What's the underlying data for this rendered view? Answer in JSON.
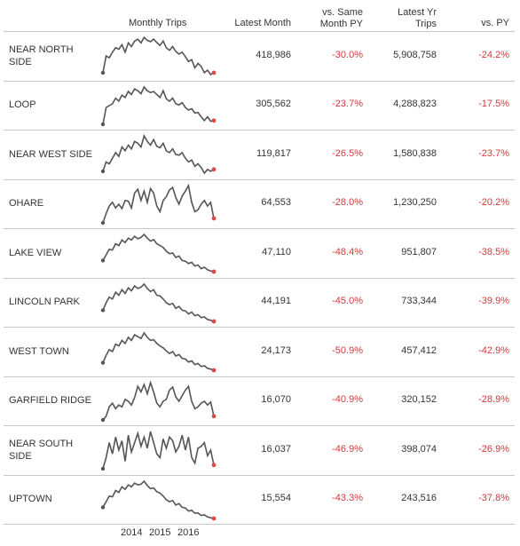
{
  "headers": {
    "monthly_trips": "Monthly Trips",
    "latest_month": "Latest Month",
    "vs_same_month_1": "vs. Same",
    "vs_same_month_2": "Month PY",
    "latest_yr_1": "Latest Yr",
    "latest_yr_2": "Trips",
    "vs_py": "vs. PY"
  },
  "x_axis_labels": [
    "2014",
    "2015",
    "2016"
  ],
  "rows": [
    {
      "name_1": "NEAR NORTH",
      "name_2": "SIDE",
      "latest_month": "418,986",
      "vs_same_month_py": "-30.0%",
      "latest_yr_trips": "5,908,758",
      "vs_py": "-24.2%"
    },
    {
      "name_1": "LOOP",
      "name_2": "",
      "latest_month": "305,562",
      "vs_same_month_py": "-23.7%",
      "latest_yr_trips": "4,288,823",
      "vs_py": "-17.5%"
    },
    {
      "name_1": "NEAR WEST SIDE",
      "name_2": "",
      "latest_month": "119,817",
      "vs_same_month_py": "-26.5%",
      "latest_yr_trips": "1,580,838",
      "vs_py": "-23.7%"
    },
    {
      "name_1": "OHARE",
      "name_2": "",
      "latest_month": "64,553",
      "vs_same_month_py": "-28.0%",
      "latest_yr_trips": "1,230,250",
      "vs_py": "-20.2%"
    },
    {
      "name_1": "LAKE VIEW",
      "name_2": "",
      "latest_month": "47,110",
      "vs_same_month_py": "-48.4%",
      "latest_yr_trips": "951,807",
      "vs_py": "-38.5%"
    },
    {
      "name_1": "LINCOLN PARK",
      "name_2": "",
      "latest_month": "44,191",
      "vs_same_month_py": "-45.0%",
      "latest_yr_trips": "733,344",
      "vs_py": "-39.9%"
    },
    {
      "name_1": "WEST TOWN",
      "name_2": "",
      "latest_month": "24,173",
      "vs_same_month_py": "-50.9%",
      "latest_yr_trips": "457,412",
      "vs_py": "-42.9%"
    },
    {
      "name_1": "GARFIELD RIDGE",
      "name_2": "",
      "latest_month": "16,070",
      "vs_same_month_py": "-40.9%",
      "latest_yr_trips": "320,152",
      "vs_py": "-28.9%"
    },
    {
      "name_1": "NEAR SOUTH",
      "name_2": "SIDE",
      "latest_month": "16,037",
      "vs_same_month_py": "-46.9%",
      "latest_yr_trips": "398,074",
      "vs_py": "-26.9%"
    },
    {
      "name_1": "UPTOWN",
      "name_2": "",
      "latest_month": "15,554",
      "vs_same_month_py": "-43.3%",
      "latest_yr_trips": "243,516",
      "vs_py": "-37.8%"
    }
  ],
  "colors": {
    "negative": "#d13b3b",
    "line": "#555555",
    "end_dot": "#e04848",
    "start_dot": "#555555",
    "grid": "#c8c8c8"
  },
  "chart_data": {
    "type": "line",
    "title": "Monthly Trips",
    "xlabel": "",
    "ylabel": "",
    "x_tick_labels": [
      "2014",
      "2015",
      "2016"
    ],
    "grid": false,
    "series": [
      {
        "name": "NEAR NORTH SIDE",
        "values": [
          0.05,
          0.5,
          0.45,
          0.6,
          0.72,
          0.68,
          0.8,
          0.6,
          0.85,
          0.75,
          0.9,
          0.95,
          0.85,
          1.0,
          0.92,
          0.88,
          0.95,
          0.86,
          0.78,
          0.9,
          0.72,
          0.65,
          0.75,
          0.62,
          0.55,
          0.6,
          0.48,
          0.35,
          0.4,
          0.18,
          0.3,
          0.22,
          0.05,
          0.12,
          0.0,
          0.05
        ]
      },
      {
        "name": "LOOP",
        "values": [
          0.0,
          0.45,
          0.5,
          0.55,
          0.7,
          0.62,
          0.78,
          0.72,
          0.88,
          0.8,
          0.95,
          0.9,
          0.82,
          1.0,
          0.9,
          0.85,
          0.88,
          0.8,
          0.72,
          0.9,
          0.68,
          0.62,
          0.7,
          0.55,
          0.52,
          0.58,
          0.45,
          0.38,
          0.42,
          0.3,
          0.32,
          0.2,
          0.1,
          0.2,
          0.08,
          0.1
        ]
      },
      {
        "name": "NEAR WEST SIDE",
        "values": [
          0.05,
          0.3,
          0.25,
          0.4,
          0.55,
          0.45,
          0.7,
          0.6,
          0.75,
          0.65,
          0.85,
          0.8,
          0.7,
          1.0,
          0.85,
          0.75,
          0.9,
          0.72,
          0.68,
          0.8,
          0.6,
          0.55,
          0.65,
          0.5,
          0.48,
          0.55,
          0.4,
          0.3,
          0.35,
          0.18,
          0.25,
          0.15,
          0.0,
          0.1,
          0.05,
          0.1
        ]
      },
      {
        "name": "OHARE",
        "values": [
          0.0,
          0.25,
          0.45,
          0.55,
          0.4,
          0.5,
          0.38,
          0.6,
          0.58,
          0.4,
          0.8,
          0.9,
          0.6,
          0.85,
          0.55,
          0.92,
          0.8,
          0.45,
          0.3,
          0.6,
          0.7,
          0.88,
          0.95,
          0.68,
          0.5,
          0.72,
          0.85,
          1.0,
          0.55,
          0.3,
          0.35,
          0.5,
          0.6,
          0.45,
          0.55,
          0.12
        ]
      },
      {
        "name": "LAKE VIEW",
        "values": [
          0.3,
          0.45,
          0.6,
          0.58,
          0.75,
          0.7,
          0.85,
          0.78,
          0.9,
          0.85,
          0.95,
          0.88,
          0.92,
          1.0,
          0.9,
          0.82,
          0.86,
          0.75,
          0.7,
          0.65,
          0.55,
          0.48,
          0.5,
          0.38,
          0.42,
          0.3,
          0.28,
          0.22,
          0.25,
          0.15,
          0.18,
          0.08,
          0.12,
          0.05,
          0.02,
          0.0
        ]
      },
      {
        "name": "LINCOLN PARK",
        "values": [
          0.3,
          0.5,
          0.65,
          0.6,
          0.78,
          0.7,
          0.85,
          0.75,
          0.9,
          0.82,
          0.95,
          0.88,
          0.92,
          1.0,
          0.88,
          0.8,
          0.85,
          0.7,
          0.68,
          0.6,
          0.5,
          0.45,
          0.48,
          0.35,
          0.4,
          0.3,
          0.28,
          0.2,
          0.25,
          0.15,
          0.18,
          0.1,
          0.12,
          0.05,
          0.03,
          0.0
        ]
      },
      {
        "name": "WEST TOWN",
        "values": [
          0.2,
          0.4,
          0.55,
          0.5,
          0.7,
          0.65,
          0.8,
          0.72,
          0.88,
          0.8,
          0.95,
          0.9,
          0.85,
          1.0,
          0.88,
          0.8,
          0.82,
          0.72,
          0.65,
          0.6,
          0.52,
          0.45,
          0.5,
          0.38,
          0.42,
          0.32,
          0.3,
          0.22,
          0.25,
          0.15,
          0.18,
          0.1,
          0.12,
          0.05,
          0.03,
          0.0
        ]
      },
      {
        "name": "GARFIELD RIDGE",
        "values": [
          0.0,
          0.1,
          0.35,
          0.45,
          0.3,
          0.4,
          0.35,
          0.55,
          0.5,
          0.4,
          0.6,
          0.9,
          0.75,
          0.95,
          0.7,
          1.0,
          0.75,
          0.45,
          0.35,
          0.5,
          0.55,
          0.8,
          0.88,
          0.62,
          0.5,
          0.65,
          0.8,
          0.9,
          0.5,
          0.3,
          0.35,
          0.45,
          0.5,
          0.4,
          0.48,
          0.1
        ]
      },
      {
        "name": "NEAR SOUTH SIDE",
        "values": [
          0.0,
          0.3,
          0.7,
          0.4,
          0.85,
          0.5,
          0.75,
          0.2,
          0.9,
          0.45,
          0.7,
          0.95,
          0.6,
          0.85,
          0.55,
          1.0,
          0.7,
          0.4,
          0.3,
          0.8,
          0.55,
          0.85,
          0.75,
          0.45,
          0.6,
          0.9,
          0.5,
          0.85,
          0.3,
          0.15,
          0.55,
          0.6,
          0.7,
          0.35,
          0.5,
          0.1
        ]
      },
      {
        "name": "UPTOWN",
        "values": [
          0.3,
          0.45,
          0.6,
          0.58,
          0.75,
          0.7,
          0.85,
          0.78,
          0.9,
          0.85,
          0.95,
          0.9,
          0.92,
          1.0,
          0.88,
          0.8,
          0.82,
          0.72,
          0.68,
          0.6,
          0.5,
          0.45,
          0.48,
          0.36,
          0.4,
          0.3,
          0.28,
          0.2,
          0.22,
          0.14,
          0.15,
          0.08,
          0.1,
          0.04,
          0.02,
          0.0
        ]
      }
    ]
  }
}
